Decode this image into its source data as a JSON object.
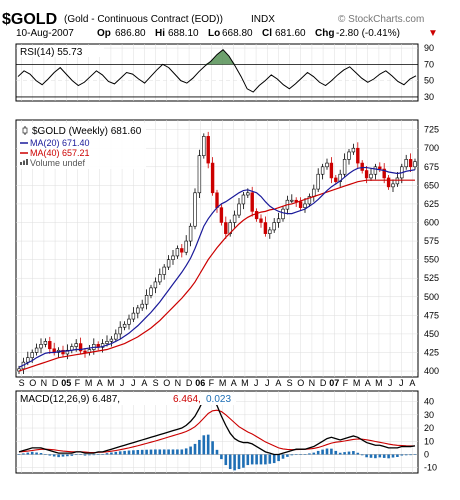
{
  "header": {
    "symbol": "$GOLD",
    "description": "(Gold - Continuous Contract (EOD))",
    "exchange": "INDX",
    "copyright": "© StockCharts.com",
    "date": "10-Aug-2007",
    "open_label": "Op",
    "open": "686.80",
    "high_label": "Hi",
    "high": "688.10",
    "low_label": "Lo",
    "low": "668.80",
    "close_label": "Cl",
    "close": "681.60",
    "change_label": "Chg",
    "change": "-2.80 (-0.41%)",
    "change_arrow": "▼",
    "arrow_color": "#cc0000"
  },
  "chart_data": [
    {
      "type": "line",
      "title": "RSI(14) 55.73",
      "x_ticks": [],
      "y_ticks": [
        30,
        50,
        70,
        90
      ],
      "ylim": [
        25,
        95
      ],
      "grid": true,
      "reference_lines": [
        30,
        70
      ],
      "series": [
        {
          "values": [
            55,
            62,
            58,
            50,
            45,
            52,
            60,
            66,
            58,
            50,
            44,
            48,
            55,
            62,
            57,
            49,
            46,
            53,
            60,
            58,
            52,
            47,
            55,
            63,
            70,
            66,
            58,
            50,
            47,
            53,
            61,
            68,
            74,
            82,
            88,
            80,
            68,
            55,
            40,
            36,
            44,
            50,
            57,
            52,
            45,
            40,
            46,
            53,
            60,
            55,
            48,
            44,
            50,
            57,
            63,
            67,
            60,
            53,
            48,
            52,
            58,
            62,
            56,
            49,
            45,
            52,
            56
          ],
          "color": "#000000"
        }
      ],
      "fill_color": "#4a8a4a"
    },
    {
      "type": "candlestick",
      "title": "$GOLD (Weekly) 681.60",
      "legend": [
        {
          "label": "MA(20) 671.40",
          "color": "#1a1a9a"
        },
        {
          "label": "MA(40) 657.21",
          "color": "#cc0000"
        },
        {
          "label": "Volume undef",
          "color": "#555555"
        }
      ],
      "x_labels": [
        "S",
        "O",
        "N",
        "D",
        "05",
        "F",
        "M",
        "A",
        "M",
        "J",
        "J",
        "A",
        "S",
        "O",
        "N",
        "D",
        "06",
        "F",
        "M",
        "A",
        "M",
        "J",
        "J",
        "A",
        "S",
        "O",
        "N",
        "D",
        "07",
        "F",
        "M",
        "A",
        "M",
        "J",
        "J",
        "A"
      ],
      "y_ticks": [
        400,
        425,
        450,
        475,
        500,
        525,
        550,
        575,
        600,
        625,
        650,
        675,
        700,
        725
      ],
      "ylim": [
        392,
        738
      ],
      "grid": true,
      "close": [
        403,
        412,
        418,
        425,
        431,
        436,
        440,
        430,
        425,
        428,
        423,
        428,
        433,
        437,
        427,
        425,
        429,
        436,
        432,
        437,
        440,
        443,
        450,
        459,
        463,
        470,
        478,
        485,
        490,
        502,
        512,
        520,
        530,
        540,
        550,
        555,
        565,
        560,
        575,
        595,
        640,
        690,
        716,
        680,
        640,
        620,
        600,
        585,
        600,
        610,
        625,
        637,
        640,
        615,
        605,
        600,
        585,
        590,
        600,
        605,
        618,
        630,
        630,
        628,
        620,
        625,
        635,
        645,
        665,
        675,
        680,
        660,
        655,
        665,
        685,
        695,
        700,
        680,
        670,
        660,
        665,
        675,
        672,
        660,
        648,
        652,
        660,
        675,
        685,
        675,
        682
      ],
      "ma20": [
        405,
        408,
        411,
        414,
        418,
        421,
        424,
        425,
        425,
        426,
        427,
        427,
        428,
        429,
        429,
        430,
        431,
        432,
        432,
        433,
        435,
        437,
        440,
        443,
        447,
        451,
        456,
        461,
        467,
        473,
        479,
        486,
        493,
        501,
        509,
        517,
        525,
        533,
        542,
        552,
        565,
        580,
        595,
        605,
        613,
        620,
        625,
        628,
        632,
        636,
        640,
        643,
        644,
        642,
        640,
        635,
        628,
        622,
        618,
        615,
        613,
        612,
        612,
        614,
        616,
        618,
        622,
        626,
        631,
        637,
        643,
        648,
        652,
        656,
        661,
        666,
        670,
        673,
        674,
        674,
        673,
        672,
        671,
        670,
        668,
        667,
        666,
        667,
        669,
        670,
        671
      ],
      "ma40": [
        400,
        402,
        404,
        406,
        408,
        410,
        412,
        414,
        416,
        418,
        419,
        420,
        421,
        422,
        423,
        424,
        425,
        426,
        427,
        428,
        429,
        431,
        433,
        435,
        437,
        440,
        443,
        446,
        450,
        454,
        458,
        463,
        468,
        474,
        480,
        486,
        492,
        498,
        505,
        512,
        520,
        530,
        540,
        550,
        558,
        566,
        573,
        580,
        586,
        592,
        598,
        603,
        607,
        610,
        612,
        614,
        615,
        617,
        618,
        620,
        622,
        624,
        625,
        627,
        629,
        631,
        633,
        635,
        637,
        639,
        641,
        643,
        645,
        647,
        649,
        651,
        653,
        655,
        656,
        657,
        657,
        657,
        657,
        657,
        657,
        657,
        657,
        657,
        657,
        657,
        657
      ]
    },
    {
      "type": "line",
      "title": "MACD(12,26,9) 6.487, 6.464, 0.023",
      "macd_label": "MACD(12,26,9) 6.487,",
      "signal_label": "6.464,",
      "hist_label": "0.023",
      "macd_color": "#000000",
      "signal_color": "#cc0000",
      "hist_color": "#1f6fb5",
      "y_ticks": [
        -10,
        0,
        10,
        20,
        30,
        40
      ],
      "ylim": [
        -14,
        48
      ],
      "grid": true,
      "macd": [
        2,
        3,
        4,
        5,
        5,
        5,
        4,
        3,
        2,
        1,
        1,
        1,
        1,
        2,
        2,
        1,
        1,
        1,
        2,
        2,
        3,
        4,
        5,
        6,
        7,
        8,
        9,
        10,
        11,
        12,
        13,
        14,
        15,
        16,
        17,
        18,
        19,
        20,
        22,
        25,
        29,
        35,
        42,
        46,
        43,
        37,
        29,
        22,
        16,
        12,
        10,
        9,
        9,
        8,
        6,
        4,
        2,
        1,
        0,
        0,
        1,
        2,
        3,
        4,
        4,
        4,
        5,
        6,
        8,
        10,
        12,
        13,
        12,
        11,
        12,
        13,
        14,
        13,
        11,
        9,
        8,
        7,
        7,
        6,
        5,
        5,
        5,
        6,
        6,
        6,
        6.5
      ],
      "signal": [
        2,
        2.2,
        2.6,
        3,
        3.5,
        3.9,
        4,
        3.8,
        3.5,
        3,
        2.6,
        2.3,
        2,
        2,
        2,
        1.8,
        1.6,
        1.5,
        1.6,
        1.7,
        2,
        2.5,
        3,
        3.6,
        4.3,
        5,
        5.8,
        6.6,
        7.5,
        8.4,
        9.3,
        10.2,
        11.2,
        12.2,
        13.2,
        14.2,
        15.2,
        16.2,
        17.4,
        19,
        21,
        24,
        27.5,
        31,
        33,
        33.5,
        32.5,
        30,
        27,
        24,
        21,
        19,
        17,
        15.5,
        13.5,
        11.5,
        9.5,
        8,
        6.5,
        5,
        4.2,
        3.8,
        3.6,
        3.7,
        3.8,
        3.9,
        4.2,
        4.6,
        5.3,
        6.3,
        7.5,
        8.6,
        9.3,
        9.7,
        10.2,
        10.8,
        11.4,
        11.7,
        11.6,
        11.1,
        10.5,
        9.8,
        9.2,
        8.6,
        7.9,
        7.3,
        6.9,
        6.8,
        6.6,
        6.5,
        6.46
      ],
      "histogram": [
        0,
        0.8,
        1.4,
        2,
        1.5,
        1.1,
        0,
        -0.8,
        -1.5,
        -2,
        -1.6,
        -1.3,
        -1,
        0,
        0,
        -0.8,
        -0.6,
        -0.5,
        0.4,
        0.3,
        1,
        1.5,
        2,
        2.4,
        2.7,
        3,
        3.2,
        3.4,
        3.5,
        3.6,
        3.7,
        3.8,
        3.8,
        3.8,
        3.8,
        3.8,
        3.8,
        3.8,
        4.6,
        6,
        8,
        11,
        14.5,
        15,
        10,
        3.5,
        -3.5,
        -8,
        -11,
        -12,
        -11,
        -10,
        -8,
        -7.5,
        -7.5,
        -7.5,
        -7.5,
        -7,
        -6.5,
        -5,
        -3.2,
        -1.8,
        -0.6,
        0.3,
        0.2,
        0.1,
        0.8,
        1.4,
        2.7,
        3.7,
        4.5,
        4.4,
        2.7,
        1.3,
        1.8,
        2.2,
        2.6,
        1.3,
        -0.6,
        -2.1,
        -2.5,
        -2.8,
        -2.2,
        -2.6,
        -2.9,
        -2.3,
        -1.9,
        -0.8,
        -0.6,
        -0.5,
        0.02
      ]
    }
  ]
}
